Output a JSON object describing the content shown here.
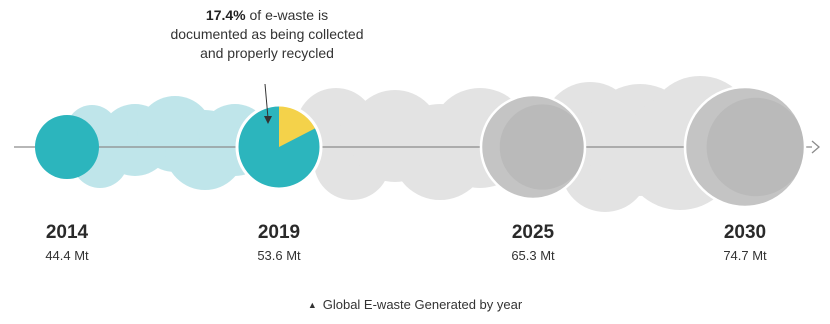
{
  "annotation": {
    "highlight": "17.4%",
    "text_line1": " of e-waste is",
    "text_line2": "documented as being collected",
    "text_line3": "and properly recycled"
  },
  "caption": {
    "marker": "▲",
    "text": "Global E-waste Generated by year"
  },
  "colors": {
    "teal": "#2cb5bd",
    "teal_light": "#bfe5ea",
    "gray_light": "#e3e3e3",
    "gray_mid": "#c4c4c4",
    "gray_dark": "#b3b3b3",
    "yellow": "#f4d24a",
    "axis": "#8c8c8c"
  },
  "chart_data": {
    "type": "bubble-timeline",
    "title": "",
    "points": [
      {
        "year": "2014",
        "value": 44.4,
        "value_label": "44.4 Mt",
        "kind": "actual"
      },
      {
        "year": "2019",
        "value": 53.6,
        "value_label": "53.6 Mt",
        "kind": "actual",
        "recycled_pct": 17.4
      },
      {
        "year": "2025",
        "value": 65.3,
        "value_label": "65.3 Mt",
        "kind": "projected"
      },
      {
        "year": "2030",
        "value": 74.7,
        "value_label": "74.7 Mt",
        "kind": "projected"
      }
    ]
  }
}
